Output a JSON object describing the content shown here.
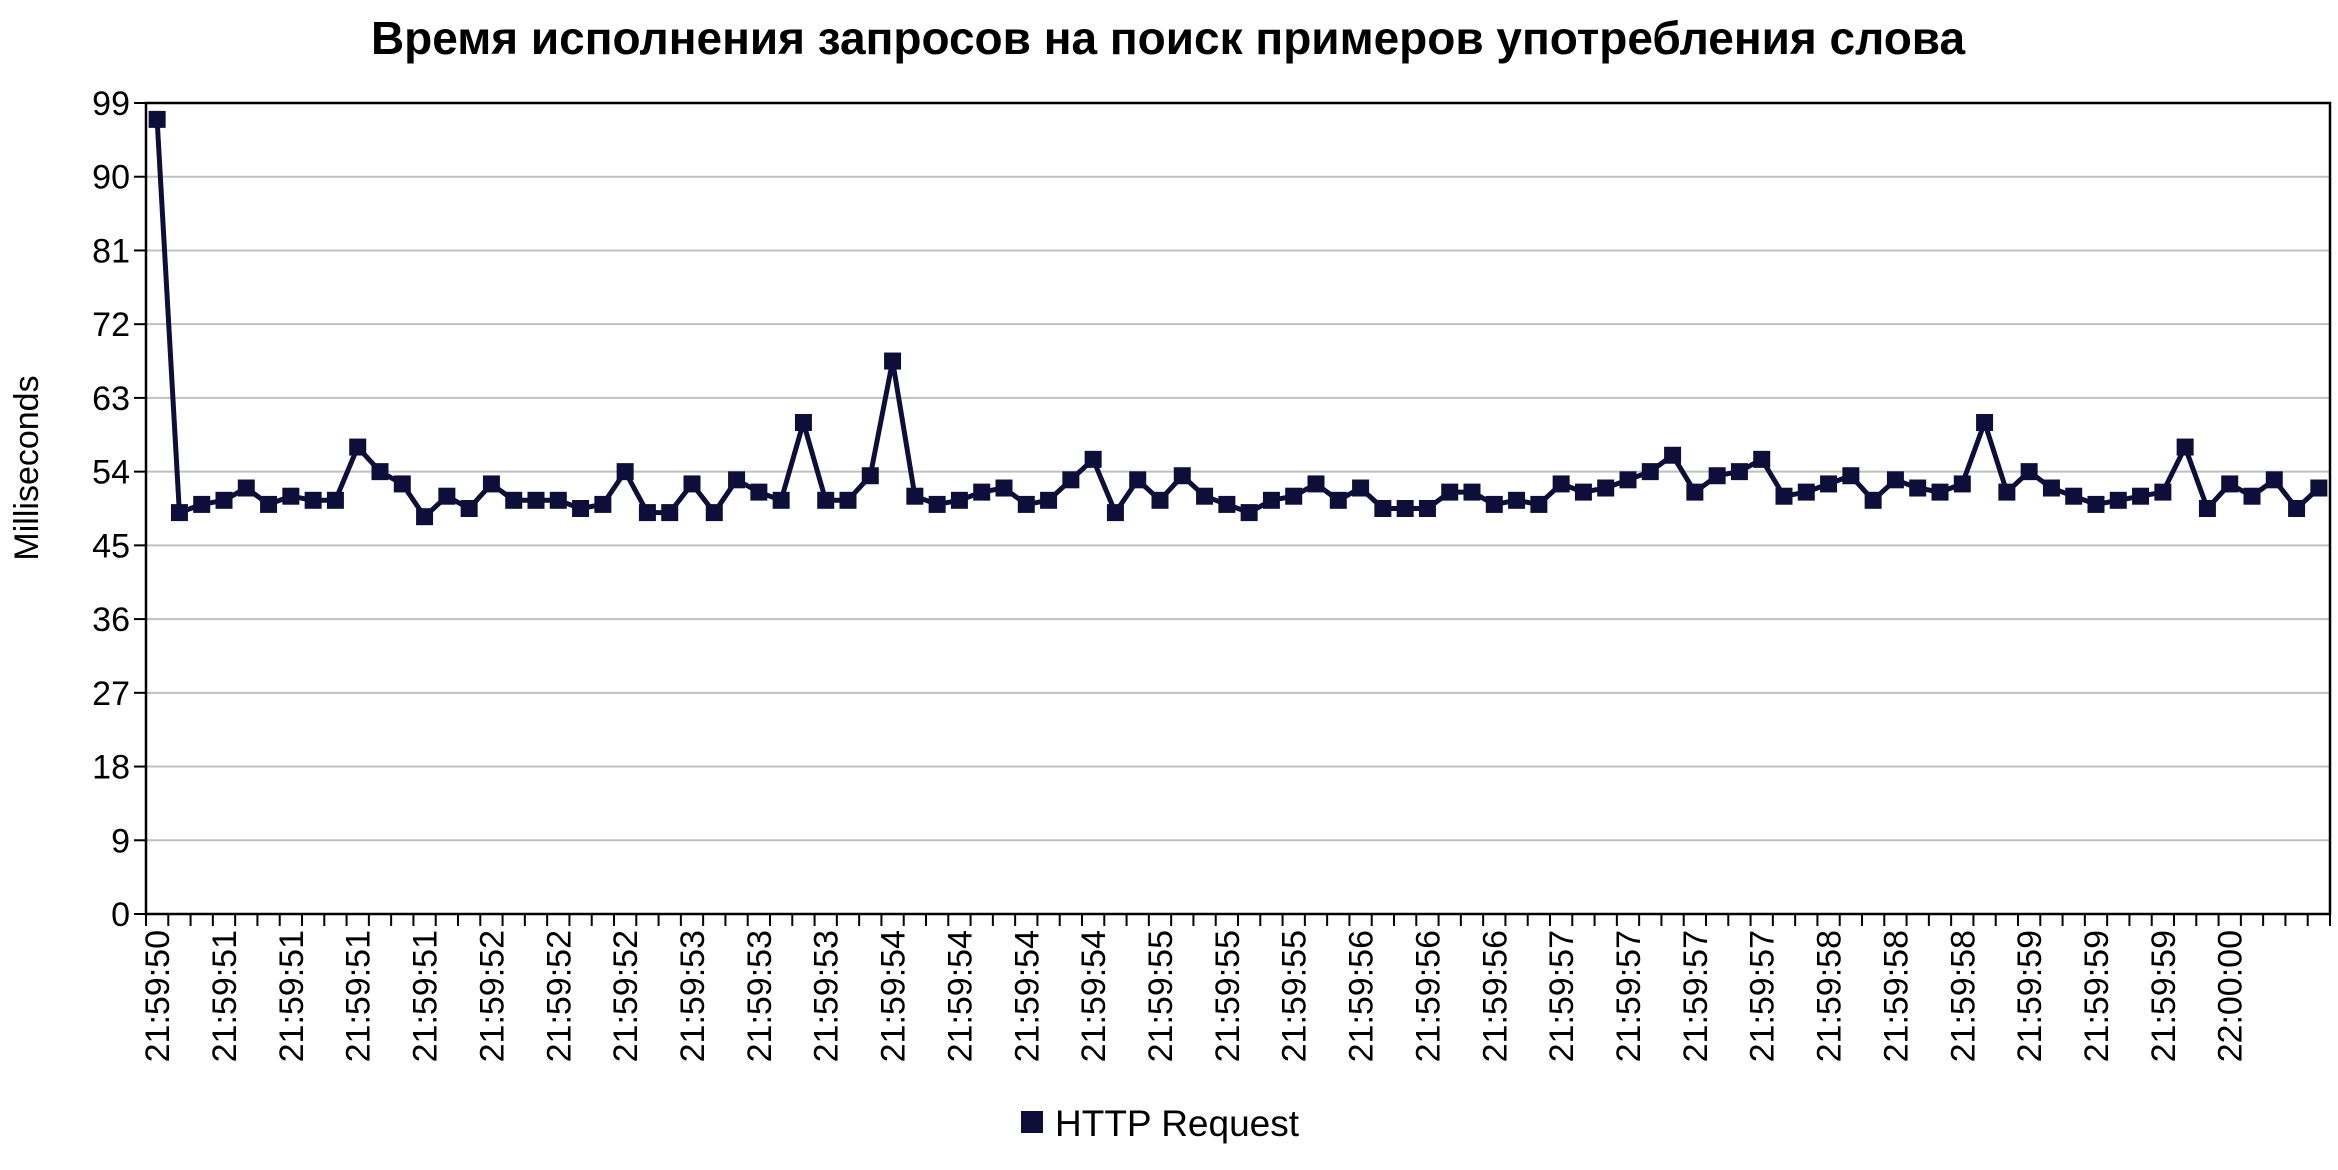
{
  "chart_data": {
    "type": "line",
    "title": "Время исполнения запросов на поиск примеров употребления слова",
    "xlabel": "",
    "ylabel": "Milliseconds",
    "ylim": [
      0,
      99
    ],
    "yticks": [
      0,
      9,
      18,
      27,
      36,
      45,
      54,
      63,
      72,
      81,
      90,
      99
    ],
    "grid": "horizontal",
    "legend_position": "bottom-center",
    "x_tick_labels": [
      "21:59:50",
      "21:59:51",
      "21:59:51",
      "21:59:51",
      "21:59:51",
      "21:59:52",
      "21:59:52",
      "21:59:52",
      "21:59:53",
      "21:59:53",
      "21:59:53",
      "21:59:54",
      "21:59:54",
      "21:59:54",
      "21:59:54",
      "21:59:55",
      "21:59:55",
      "21:59:55",
      "21:59:56",
      "21:59:56",
      "21:59:56",
      "21:59:57",
      "21:59:57",
      "21:59:57",
      "21:59:57",
      "21:59:58",
      "21:59:58",
      "21:59:58",
      "21:59:59",
      "21:59:59",
      "21:59:59",
      "22:00:00"
    ],
    "series": [
      {
        "name": "HTTP Request",
        "color": "#0e0e3a",
        "marker": "square",
        "values": [
          97,
          49,
          50,
          50.5,
          52,
          50,
          51,
          50.5,
          50.5,
          57,
          54,
          52.5,
          48.5,
          51,
          49.5,
          52.5,
          50.5,
          50.5,
          50.5,
          49.5,
          50,
          54,
          49,
          49,
          52.5,
          49,
          53,
          51.5,
          50.5,
          60,
          50.5,
          50.5,
          53.5,
          67.5,
          51,
          50,
          50.5,
          51.5,
          52,
          50,
          50.5,
          53,
          55.5,
          49,
          53,
          50.5,
          53.5,
          51,
          50,
          49,
          50.5,
          51,
          52.5,
          50.5,
          52,
          49.5,
          49.5,
          49.5,
          51.5,
          51.5,
          50,
          50.5,
          50,
          52.5,
          51.5,
          52,
          53,
          54,
          56,
          51.5,
          53.5,
          54,
          55.5,
          51,
          51.5,
          52.5,
          53.5,
          50.5,
          53,
          52,
          51.5,
          52.5,
          60,
          51.5,
          54,
          52,
          51,
          50,
          50.5,
          51,
          51.5,
          57,
          49.5,
          52.5,
          51,
          53,
          49.5,
          52
        ]
      }
    ]
  }
}
